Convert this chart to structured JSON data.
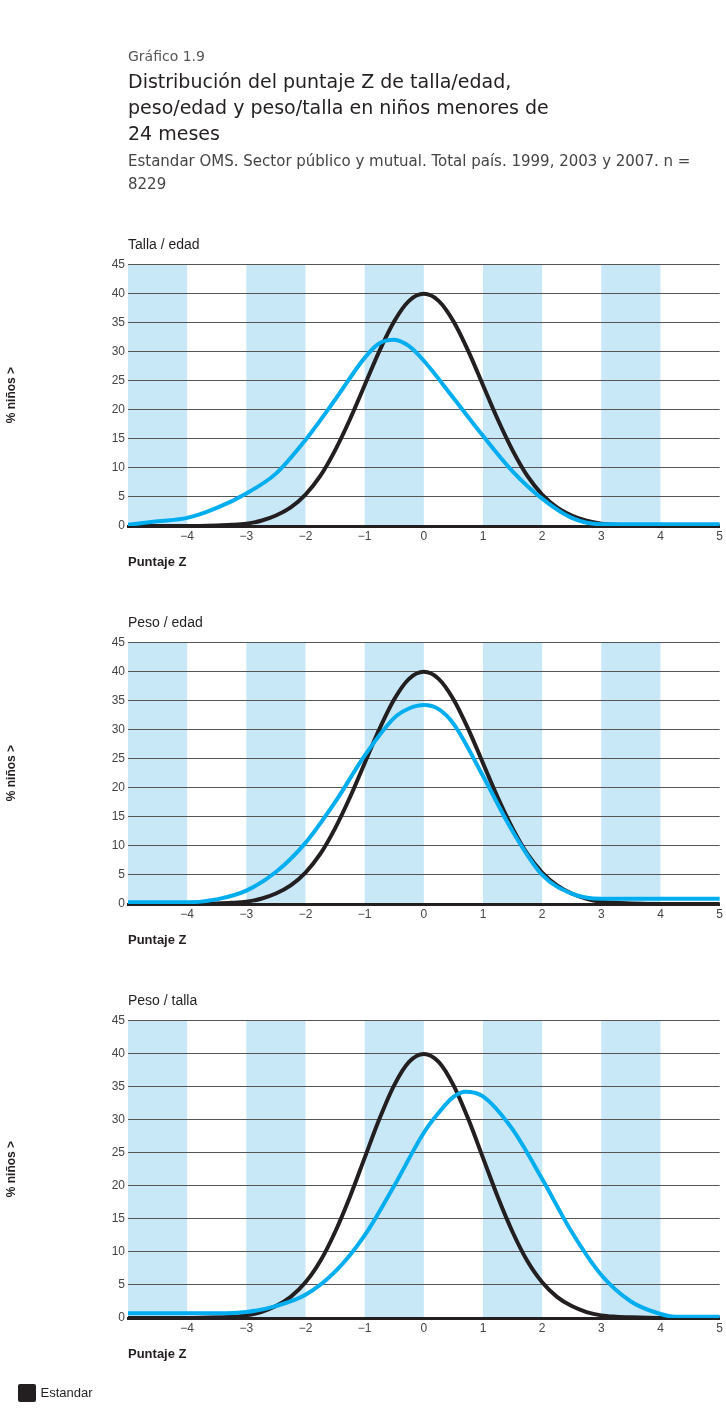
{
  "chart_data": [
    {
      "type": "line",
      "title": "Talla / edad",
      "annotations": [
        "Gráfico 1.9",
        "Distribución del puntaje Z de talla/edad, peso/edad y peso/talla en niños menores de 24 meses",
        "Estandar OMS. Sector público y mutual. Total país. 1999, 2003 y 2007. n = 8229"
      ],
      "xlabel": "Puntaje Z",
      "ylabel": "% niños >",
      "xlim": [
        -5,
        5
      ],
      "xticks": [
        -4,
        -3,
        -2,
        -1,
        0,
        1,
        2,
        3,
        4,
        5
      ],
      "ylim": [
        0,
        45
      ],
      "yticks": [
        0,
        5,
        10,
        15,
        20,
        25,
        30,
        35,
        40,
        45
      ],
      "grid": "y",
      "marker": "none",
      "line_style": "solid",
      "bands": [
        {
          "axis": "x",
          "from": -5,
          "to": -4,
          "color": "#c8e8f8"
        },
        {
          "axis": "x",
          "from": -3,
          "to": -2,
          "color": "#c8e8f8"
        },
        {
          "axis": "x",
          "from": -1,
          "to": 0,
          "color": "#c8e8f8"
        },
        {
          "axis": "x",
          "from": 1,
          "to": 2,
          "color": "#c8e8f8"
        },
        {
          "axis": "x",
          "from": 3,
          "to": 4,
          "color": "#c8e8f8"
        }
      ],
      "series": [
        {
          "color": "#00aeef",
          "x": [
            -5,
            -4.5,
            -4,
            -3.5,
            -3,
            -2.5,
            -2,
            -1.5,
            -1,
            -0.75,
            -0.5,
            -0.25,
            0,
            0.5,
            1,
            1.5,
            2,
            2.5,
            3,
            3.5,
            4,
            4.5,
            5
          ],
          "values": [
            0.2,
            0.8,
            1.4,
            3.1,
            5.6,
            9,
            14.8,
            21.7,
            28.9,
            31.4,
            32,
            30.9,
            28.4,
            22,
            15.5,
            9.4,
            4.7,
            1.4,
            0.3,
            0.3,
            0.3,
            0.3,
            0.3
          ]
        },
        {
          "color": "#231f20",
          "x": [
            -5,
            -4,
            -3.5,
            -3.25,
            -3,
            -2.75,
            -2.5,
            -2.25,
            -2,
            -1.75,
            -1.5,
            -1.25,
            -1,
            -0.75,
            -0.5,
            -0.25,
            0,
            0.25,
            0.5,
            0.75,
            1,
            1.25,
            1.5,
            1.75,
            2,
            2.25,
            2.5,
            2.75,
            3,
            3.25,
            3.5,
            4,
            5
          ],
          "values": [
            0,
            0,
            0.1,
            0.2,
            0.4,
            0.9,
            1.8,
            3.2,
            5.4,
            8.6,
            13,
            18.3,
            24.2,
            30.1,
            35.2,
            38.7,
            39.9,
            38.7,
            35.2,
            30.1,
            24.2,
            18.3,
            13,
            8.6,
            5.4,
            3.2,
            1.8,
            0.9,
            0.4,
            0.2,
            0.1,
            0,
            0
          ]
        }
      ]
    },
    {
      "type": "line",
      "title": "Peso / edad",
      "xlabel": "Puntaje Z",
      "ylabel": "% niños >",
      "xlim": [
        -5,
        5
      ],
      "xticks": [
        -4,
        -3,
        -2,
        -1,
        0,
        1,
        2,
        3,
        4,
        5
      ],
      "ylim": [
        0,
        45
      ],
      "yticks": [
        0,
        5,
        10,
        15,
        20,
        25,
        30,
        35,
        40,
        45
      ],
      "grid": "y",
      "marker": "none",
      "line_style": "solid",
      "bands": [
        {
          "axis": "x",
          "from": -5,
          "to": -4,
          "color": "#c8e8f8"
        },
        {
          "axis": "x",
          "from": -3,
          "to": -2,
          "color": "#c8e8f8"
        },
        {
          "axis": "x",
          "from": -1,
          "to": 0,
          "color": "#c8e8f8"
        },
        {
          "axis": "x",
          "from": 1,
          "to": 2,
          "color": "#c8e8f8"
        },
        {
          "axis": "x",
          "from": 3,
          "to": 4,
          "color": "#c8e8f8"
        }
      ],
      "series": [
        {
          "color": "#00aeef",
          "x": [
            -5,
            -4,
            -3.5,
            -3,
            -2.5,
            -2,
            -1.5,
            -1,
            -0.5,
            -0.25,
            0,
            0.25,
            0.5,
            1,
            1.5,
            2,
            2.5,
            3,
            3.5,
            4,
            5
          ],
          "values": [
            0.3,
            0.3,
            0.8,
            2.3,
            5.5,
            10.5,
            17.5,
            25.5,
            32,
            33.6,
            34.2,
            33.5,
            31,
            22,
            12.5,
            5,
            1.8,
            0.9,
            0.9,
            0.9,
            0.9
          ]
        },
        {
          "color": "#231f20",
          "x": [
            -5,
            -4,
            -3.5,
            -3.25,
            -3,
            -2.75,
            -2.5,
            -2.25,
            -2,
            -1.75,
            -1.5,
            -1.25,
            -1,
            -0.75,
            -0.5,
            -0.25,
            0,
            0.25,
            0.5,
            0.75,
            1,
            1.25,
            1.5,
            1.75,
            2,
            2.25,
            2.5,
            2.75,
            3,
            3.25,
            3.5,
            4,
            5
          ],
          "values": [
            0,
            0,
            0.1,
            0.2,
            0.4,
            0.9,
            1.8,
            3.2,
            5.4,
            8.6,
            13,
            18.3,
            24.2,
            30.1,
            35.2,
            38.7,
            39.9,
            38.7,
            35.2,
            30.1,
            24.2,
            18.3,
            13,
            8.6,
            5.4,
            3.2,
            1.8,
            0.9,
            0.4,
            0.2,
            0.1,
            0,
            0
          ]
        }
      ]
    },
    {
      "type": "line",
      "title": "Peso / talla",
      "xlabel": "Puntaje Z",
      "ylabel": "% niños >",
      "xlim": [
        -5,
        5
      ],
      "xticks": [
        -4,
        -3,
        -2,
        -1,
        0,
        1,
        2,
        3,
        4,
        5
      ],
      "ylim": [
        0,
        45
      ],
      "yticks": [
        0,
        5,
        10,
        15,
        20,
        25,
        30,
        35,
        40,
        45
      ],
      "grid": "y",
      "marker": "none",
      "line_style": "solid",
      "legend": "bottom",
      "bands": [
        {
          "axis": "x",
          "from": -5,
          "to": -4,
          "color": "#c8e8f8"
        },
        {
          "axis": "x",
          "from": -3,
          "to": -2,
          "color": "#c8e8f8"
        },
        {
          "axis": "x",
          "from": -1,
          "to": 0,
          "color": "#c8e8f8"
        },
        {
          "axis": "x",
          "from": 1,
          "to": 2,
          "color": "#c8e8f8"
        },
        {
          "axis": "x",
          "from": 3,
          "to": 4,
          "color": "#c8e8f8"
        }
      ],
      "series": [
        {
          "color": "#00aeef",
          "x": [
            -5,
            -4,
            -3.5,
            -3,
            -2.5,
            -2,
            -1.5,
            -1,
            -0.5,
            0,
            0.25,
            0.5,
            0.7,
            1,
            1.5,
            2,
            2.5,
            3,
            3.5,
            4,
            4.25,
            5
          ],
          "values": [
            0.7,
            0.7,
            0.7,
            0.9,
            1.8,
            3.5,
            7,
            12.5,
            20,
            28,
            31,
            33.4,
            34.2,
            33.5,
            28.5,
            21,
            13,
            6.5,
            2.5,
            0.6,
            0.2,
            0.2
          ]
        },
        {
          "name": "Estandar",
          "color": "#231f20",
          "x": [
            -5,
            -4,
            -3.5,
            -3.25,
            -3,
            -2.75,
            -2.5,
            -2.25,
            -2,
            -1.75,
            -1.5,
            -1.25,
            -1,
            -0.75,
            -0.5,
            -0.25,
            0,
            0.25,
            0.5,
            0.75,
            1,
            1.25,
            1.5,
            1.75,
            2,
            2.25,
            2.5,
            2.75,
            3,
            3.25,
            3.5,
            4,
            5
          ],
          "values": [
            0,
            0,
            0.1,
            0.2,
            0.4,
            0.9,
            1.8,
            3.2,
            5.4,
            8.6,
            13,
            18.3,
            24.2,
            30.1,
            35.2,
            38.7,
            39.9,
            38.7,
            35.2,
            30.1,
            24.2,
            18.3,
            13,
            8.6,
            5.4,
            3.2,
            1.8,
            0.9,
            0.4,
            0.2,
            0.1,
            0,
            0
          ]
        }
      ]
    }
  ]
}
